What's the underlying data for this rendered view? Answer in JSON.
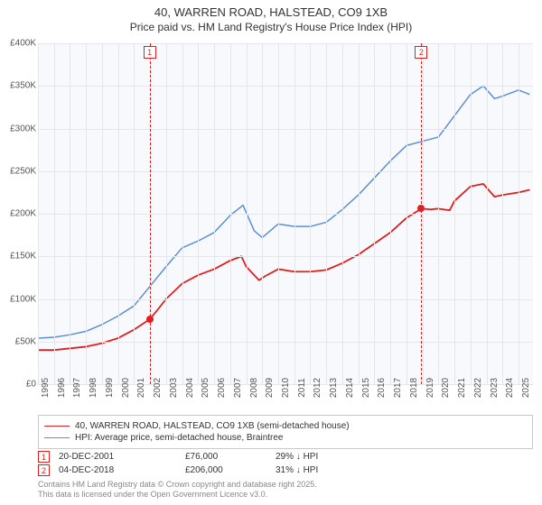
{
  "title": {
    "line1": "40, WARREN ROAD, HALSTEAD, CO9 1XB",
    "line2": "Price paid vs. HM Land Registry's House Price Index (HPI)",
    "fontsize_main": 13,
    "fontsize_sub": 12,
    "color": "#333333"
  },
  "chart": {
    "type": "line",
    "background_color": "#f7f9fc",
    "grid_color": "#e3e6eb",
    "x": {
      "label_fontsize": 10,
      "min": 1995,
      "max": 2025.9,
      "ticks": [
        1995,
        1996,
        1997,
        1998,
        1999,
        2000,
        2001,
        2002,
        2003,
        2004,
        2005,
        2006,
        2007,
        2008,
        2009,
        2010,
        2011,
        2012,
        2013,
        2014,
        2015,
        2016,
        2017,
        2018,
        2019,
        2020,
        2021,
        2022,
        2023,
        2024,
        2025
      ]
    },
    "y": {
      "label_fontsize": 10,
      "min": 0,
      "max": 400000,
      "tick_step": 50000,
      "ticks": [
        0,
        50000,
        100000,
        150000,
        200000,
        250000,
        300000,
        350000,
        400000
      ],
      "tick_labels": [
        "£0",
        "£50K",
        "£100K",
        "£150K",
        "£200K",
        "£250K",
        "£300K",
        "£350K",
        "£400K"
      ]
    },
    "series": [
      {
        "id": "price_paid",
        "label": "40, WARREN ROAD, HALSTEAD, CO9 1XB (semi-detached house)",
        "color": "#e02020",
        "line_width": 1.8,
        "x": [
          1995,
          1996,
          1997,
          1998,
          1999,
          2000,
          2001,
          2001.97,
          2002.5,
          2003,
          2004,
          2005,
          2006,
          2007,
          2007.7,
          2008,
          2008.8,
          2009.2,
          2010,
          2011,
          2012,
          2013,
          2014,
          2015,
          2016,
          2017,
          2018,
          2018.93,
          2019.5,
          2020,
          2020.7,
          2021,
          2022,
          2022.8,
          2023.5,
          2024,
          2025,
          2025.7
        ],
        "y": [
          40000,
          40000,
          42000,
          44000,
          48000,
          54000,
          64000,
          76000,
          88000,
          100000,
          118000,
          128000,
          135000,
          145000,
          150000,
          138000,
          122000,
          127000,
          135000,
          132000,
          132000,
          134000,
          142000,
          152000,
          165000,
          178000,
          195000,
          206000,
          205000,
          206000,
          204000,
          215000,
          232000,
          235000,
          220000,
          222000,
          225000,
          228000
        ]
      },
      {
        "id": "hpi",
        "label": "HPI: Average price, semi-detached house, Braintree",
        "color": "#5b8fd6",
        "line_width": 1.5,
        "x": [
          1995,
          1996,
          1997,
          1998,
          1999,
          2000,
          2001,
          2002,
          2003,
          2004,
          2005,
          2006,
          2007,
          2007.8,
          2008.5,
          2009,
          2010,
          2011,
          2012,
          2013,
          2014,
          2015,
          2016,
          2017,
          2018,
          2019,
          2020,
          2021,
          2022,
          2022.8,
          2023.5,
          2024,
          2025,
          2025.7
        ],
        "y": [
          54000,
          55000,
          58000,
          62000,
          70000,
          80000,
          92000,
          115000,
          138000,
          160000,
          168000,
          178000,
          198000,
          210000,
          180000,
          172000,
          188000,
          185000,
          185000,
          190000,
          205000,
          222000,
          242000,
          262000,
          280000,
          285000,
          290000,
          315000,
          340000,
          350000,
          335000,
          338000,
          345000,
          340000
        ]
      }
    ],
    "markers": [
      {
        "n": "1",
        "date": "20-DEC-2001",
        "year": 2001.97,
        "price_label": "£76,000",
        "price": 76000,
        "pct_label": "29% ↓ HPI"
      },
      {
        "n": "2",
        "date": "04-DEC-2018",
        "year": 2018.93,
        "price_label": "£206,000",
        "price": 206000,
        "pct_label": "31% ↓ HPI"
      }
    ]
  },
  "legend": {
    "border_color": "#c8c8c8",
    "fontsize": 10
  },
  "attribution": {
    "line1": "Contains HM Land Registry data © Crown copyright and database right 2025.",
    "line2": "This data is licensed under the Open Government Licence v3.0.",
    "color": "#888888",
    "fontsize": 9
  }
}
